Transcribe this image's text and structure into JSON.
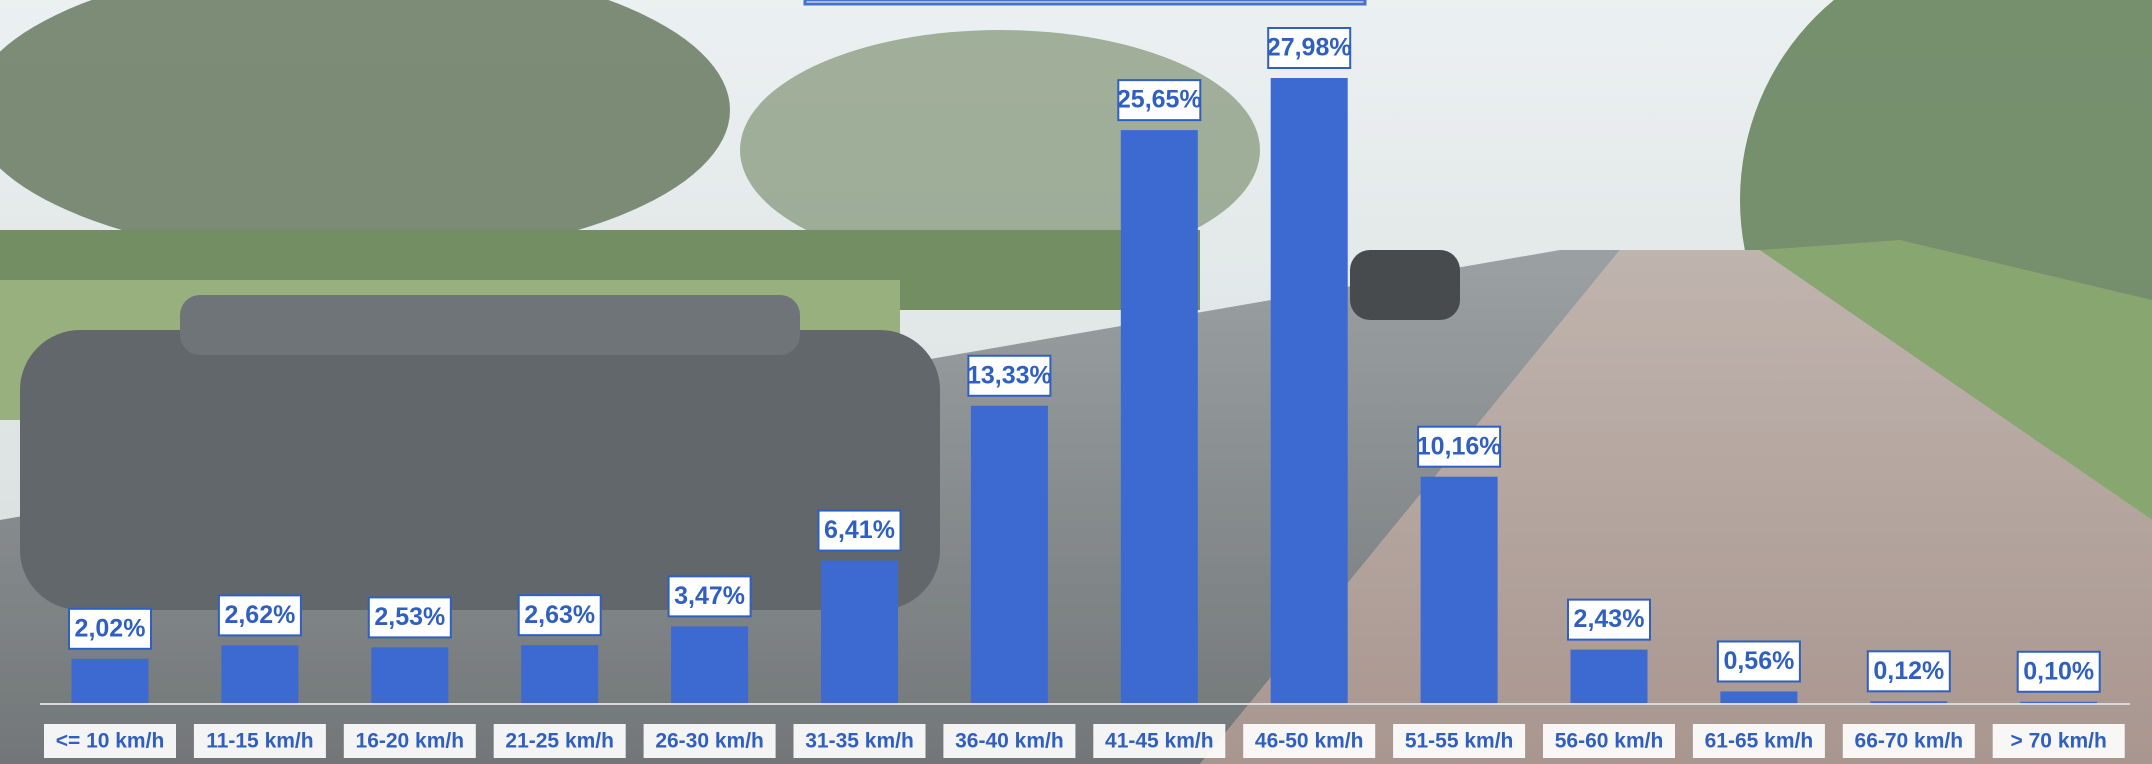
{
  "chart_data": {
    "type": "bar",
    "categories": [
      "<= 10 km/h",
      "11-15 km/h",
      "16-20 km/h",
      "21-25 km/h",
      "26-30 km/h",
      "31-35 km/h",
      "36-40 km/h",
      "41-45 km/h",
      "46-50 km/h",
      "51-55 km/h",
      "56-60 km/h",
      "61-65 km/h",
      "66-70 km/h",
      "> 70 km/h"
    ],
    "values": [
      2.02,
      2.62,
      2.53,
      2.63,
      3.47,
      6.41,
      13.33,
      25.65,
      27.98,
      10.16,
      2.43,
      0.56,
      0.12,
      0.1
    ],
    "value_labels": [
      "2,02%",
      "2,62%",
      "2,53%",
      "2,63%",
      "3,47%",
      "6,41%",
      "13,33%",
      "25,65%",
      "27,98%",
      "10,16%",
      "2,43%",
      "0,56%",
      "0,12%",
      "0,10%"
    ],
    "color": "#3d6ad0"
  }
}
